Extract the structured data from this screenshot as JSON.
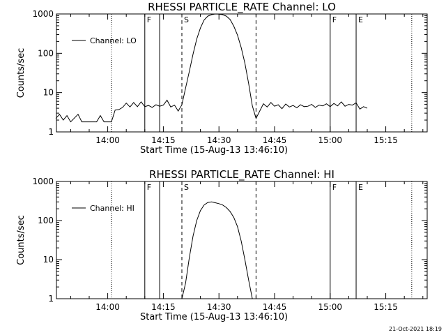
{
  "footer": {
    "timestamp": "21-Oct-2021 18:19"
  },
  "chart_data": [
    {
      "type": "line",
      "title": "RHESSI PARTICLE_RATE Channel: LO",
      "xlabel": "Start Time (15-Aug-13 13:46:10)",
      "ylabel": "Counts/sec",
      "y_scale": "log",
      "ylim": [
        1,
        1000
      ],
      "y_ticks": [
        "1",
        "10",
        "100",
        "1000"
      ],
      "xlim": [
        "13:46:10",
        "15:26:10"
      ],
      "x_ticks": [
        "14:00",
        "14:15",
        "14:30",
        "14:45",
        "15:00",
        "15:15"
      ],
      "legend": {
        "position": "top-left",
        "entries": [
          "Channel: LO"
        ]
      },
      "markers": [
        {
          "label": "F",
          "time": "14:10"
        },
        {
          "label": "",
          "time": "14:14"
        },
        {
          "label": "S",
          "time": "14:20"
        },
        {
          "label": "",
          "time": "14:40"
        },
        {
          "label": "F",
          "time": "15:00"
        },
        {
          "label": "E",
          "time": "15:07"
        }
      ],
      "dotted_lines": [
        "14:01",
        "15:22"
      ],
      "series": [
        {
          "name": "Channel: LO",
          "points": [
            [
              "13:46",
              2.2
            ],
            [
              "13:47",
              2.8
            ],
            [
              "13:48",
              2.0
            ],
            [
              "13:49",
              2.6
            ],
            [
              "13:50",
              1.8
            ],
            [
              "13:52",
              2.8
            ],
            [
              "13:53",
              1.8
            ],
            [
              "13:56",
              1.8
            ],
            [
              "13:57",
              1.8
            ],
            [
              "13:58",
              2.6
            ],
            [
              "13:59",
              1.8
            ],
            [
              "14:01",
              1.8
            ],
            [
              "14:02",
              3.6
            ],
            [
              "14:03",
              3.7
            ],
            [
              "14:04",
              4.2
            ],
            [
              "14:05",
              5.4
            ],
            [
              "14:06",
              4.3
            ],
            [
              "14:07",
              5.6
            ],
            [
              "14:08",
              4.4
            ],
            [
              "14:09",
              5.8
            ],
            [
              "14:10",
              4.4
            ],
            [
              "14:11",
              4.7
            ],
            [
              "14:12",
              4.2
            ],
            [
              "14:13",
              4.9
            ],
            [
              "14:14",
              4.5
            ],
            [
              "14:15",
              4.8
            ],
            [
              "14:16",
              6.4
            ],
            [
              "14:17",
              4.3
            ],
            [
              "14:18",
              4.8
            ],
            [
              "14:19",
              3.4
            ],
            [
              "14:20",
              4.9
            ],
            [
              "14:21",
              13
            ],
            [
              "14:22",
              34
            ],
            [
              "14:23",
              95
            ],
            [
              "14:24",
              230
            ],
            [
              "14:25",
              440
            ],
            [
              "14:26",
              700
            ],
            [
              "14:27",
              880
            ],
            [
              "14:28",
              960
            ],
            [
              "14:29",
              1000
            ],
            [
              "14:30",
              990
            ],
            [
              "14:31",
              960
            ],
            [
              "14:32",
              880
            ],
            [
              "14:33",
              720
            ],
            [
              "14:34",
              490
            ],
            [
              "14:35",
              290
            ],
            [
              "14:36",
              140
            ],
            [
              "14:37",
              56
            ],
            [
              "14:38",
              17
            ],
            [
              "14:39",
              4.6
            ],
            [
              "14:40",
              2.2
            ],
            [
              "14:41",
              3.4
            ],
            [
              "14:42",
              5.2
            ],
            [
              "14:43",
              4.3
            ],
            [
              "14:44",
              5.6
            ],
            [
              "14:45",
              4.5
            ],
            [
              "14:46",
              4.9
            ],
            [
              "14:47",
              3.9
            ],
            [
              "14:48",
              5.1
            ],
            [
              "14:49",
              4.3
            ],
            [
              "14:50",
              4.7
            ],
            [
              "14:51",
              4.1
            ],
            [
              "14:52",
              4.9
            ],
            [
              "14:53",
              4.4
            ],
            [
              "14:54",
              4.5
            ],
            [
              "14:55",
              5.0
            ],
            [
              "14:56",
              4.2
            ],
            [
              "14:57",
              4.8
            ],
            [
              "14:58",
              4.6
            ],
            [
              "14:59",
              5.2
            ],
            [
              "15:00",
              4.4
            ],
            [
              "15:01",
              5.3
            ],
            [
              "15:02",
              4.6
            ],
            [
              "15:03",
              5.8
            ],
            [
              "15:04",
              4.5
            ],
            [
              "15:05",
              5.0
            ],
            [
              "15:06",
              4.8
            ],
            [
              "15:07",
              5.5
            ],
            [
              "15:08",
              3.8
            ],
            [
              "15:09",
              4.4
            ],
            [
              "15:10",
              4.0
            ]
          ]
        }
      ]
    },
    {
      "type": "line",
      "title": "RHESSI PARTICLE_RATE Channel: HI",
      "xlabel": "Start Time (15-Aug-13 13:46:10)",
      "ylabel": "Counts/sec",
      "y_scale": "log",
      "ylim": [
        1,
        1000
      ],
      "y_ticks": [
        "1",
        "10",
        "100",
        "1000"
      ],
      "xlim": [
        "13:46:10",
        "15:26:10"
      ],
      "x_ticks": [
        "14:00",
        "14:15",
        "14:30",
        "14:45",
        "15:00",
        "15:15"
      ],
      "legend": {
        "position": "top-left",
        "entries": [
          "Channel: HI"
        ]
      },
      "markers": [
        {
          "label": "F",
          "time": "14:10"
        },
        {
          "label": "",
          "time": "14:14"
        },
        {
          "label": "S",
          "time": "14:20"
        },
        {
          "label": "",
          "time": "14:40"
        },
        {
          "label": "F",
          "time": "15:00"
        },
        {
          "label": "E",
          "time": "15:07"
        }
      ],
      "dotted_lines": [
        "14:01",
        "15:22"
      ],
      "series": [
        {
          "name": "Channel: HI",
          "points": [
            [
              "14:20",
              1.0
            ],
            [
              "14:21",
              2.5
            ],
            [
              "14:22",
              11
            ],
            [
              "14:23",
              40
            ],
            [
              "14:24",
              100
            ],
            [
              "14:25",
              180
            ],
            [
              "14:26",
              250
            ],
            [
              "14:27",
              290
            ],
            [
              "14:28",
              300
            ],
            [
              "14:29",
              285
            ],
            [
              "14:30",
              270
            ],
            [
              "14:31",
              250
            ],
            [
              "14:32",
              215
            ],
            [
              "14:33",
              170
            ],
            [
              "14:34",
              120
            ],
            [
              "14:35",
              70
            ],
            [
              "14:36",
              30
            ],
            [
              "14:37",
              10
            ],
            [
              "14:38",
              3.0
            ],
            [
              "14:39",
              1.0
            ]
          ]
        }
      ]
    }
  ]
}
